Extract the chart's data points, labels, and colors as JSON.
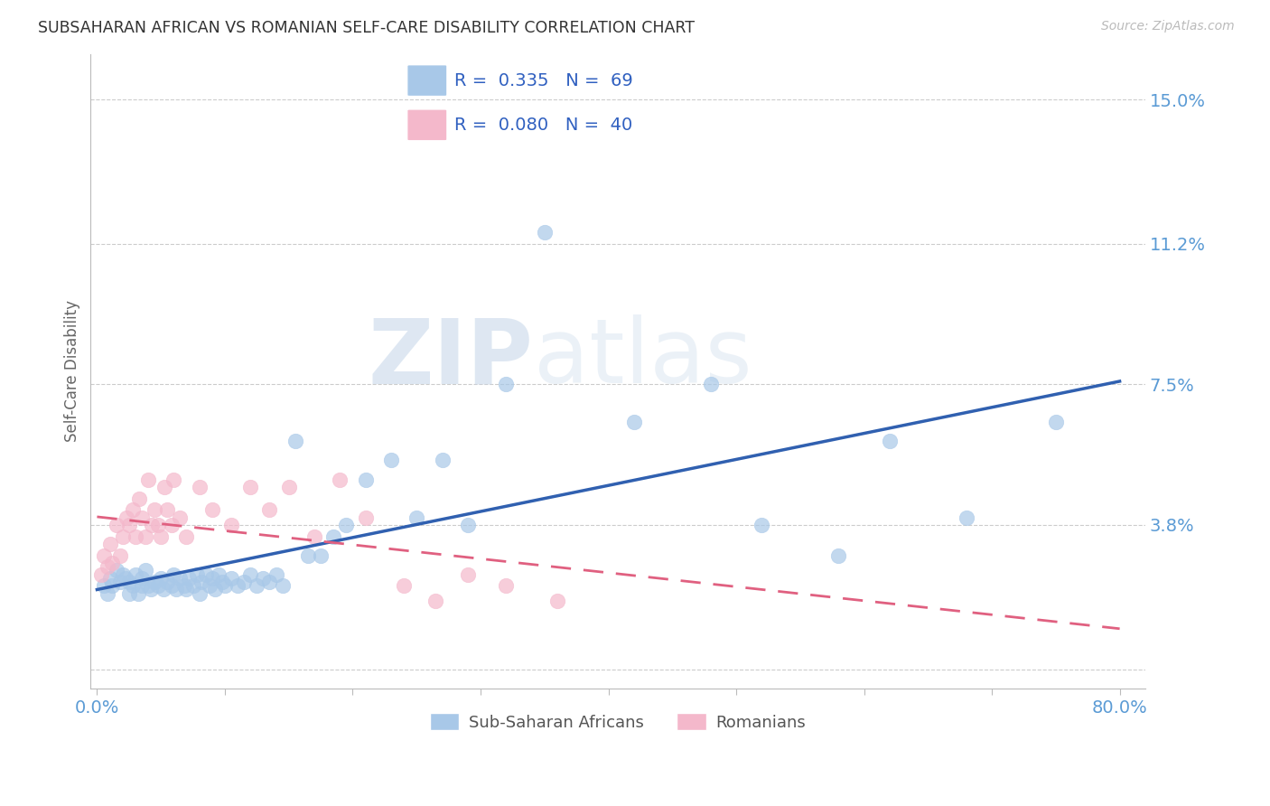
{
  "title": "SUBSAHARAN AFRICAN VS ROMANIAN SELF-CARE DISABILITY CORRELATION CHART",
  "source": "Source: ZipAtlas.com",
  "ylabel": "Self-Care Disability",
  "xlabel": "",
  "yticks": [
    0.0,
    0.038,
    0.075,
    0.112,
    0.15
  ],
  "ytick_labels": [
    "",
    "3.8%",
    "7.5%",
    "11.2%",
    "15.0%"
  ],
  "xticks": [
    0.0,
    0.1,
    0.2,
    0.3,
    0.4,
    0.5,
    0.6,
    0.7,
    0.8
  ],
  "xtick_labels": [
    "0.0%",
    "",
    "",
    "",
    "",
    "",
    "",
    "",
    "80.0%"
  ],
  "xlim": [
    -0.005,
    0.82
  ],
  "ylim": [
    -0.005,
    0.162
  ],
  "legend_blue_r": "0.335",
  "legend_blue_n": "69",
  "legend_pink_r": "0.080",
  "legend_pink_n": "40",
  "legend_blue_label": "Sub-Saharan Africans",
  "legend_pink_label": "Romanians",
  "blue_color": "#a8c8e8",
  "pink_color": "#f4b8cb",
  "blue_line_color": "#3060b0",
  "pink_line_color": "#e06080",
  "watermark_zip": "ZIP",
  "watermark_atlas": "atlas",
  "blue_scatter_x": [
    0.005,
    0.008,
    0.01,
    0.012,
    0.015,
    0.018,
    0.02,
    0.022,
    0.025,
    0.025,
    0.028,
    0.03,
    0.032,
    0.035,
    0.035,
    0.038,
    0.04,
    0.042,
    0.045,
    0.048,
    0.05,
    0.052,
    0.055,
    0.058,
    0.06,
    0.062,
    0.065,
    0.068,
    0.07,
    0.072,
    0.075,
    0.078,
    0.08,
    0.082,
    0.085,
    0.088,
    0.09,
    0.092,
    0.095,
    0.098,
    0.1,
    0.105,
    0.11,
    0.115,
    0.12,
    0.125,
    0.13,
    0.135,
    0.14,
    0.145,
    0.155,
    0.165,
    0.175,
    0.185,
    0.195,
    0.21,
    0.23,
    0.25,
    0.27,
    0.29,
    0.32,
    0.35,
    0.42,
    0.48,
    0.52,
    0.58,
    0.62,
    0.68,
    0.75
  ],
  "blue_scatter_y": [
    0.022,
    0.02,
    0.024,
    0.022,
    0.026,
    0.023,
    0.025,
    0.024,
    0.02,
    0.023,
    0.022,
    0.025,
    0.02,
    0.024,
    0.022,
    0.026,
    0.022,
    0.021,
    0.023,
    0.022,
    0.024,
    0.021,
    0.023,
    0.022,
    0.025,
    0.021,
    0.024,
    0.022,
    0.021,
    0.024,
    0.022,
    0.025,
    0.02,
    0.023,
    0.025,
    0.022,
    0.024,
    0.021,
    0.025,
    0.023,
    0.022,
    0.024,
    0.022,
    0.023,
    0.025,
    0.022,
    0.024,
    0.023,
    0.025,
    0.022,
    0.06,
    0.03,
    0.03,
    0.035,
    0.038,
    0.05,
    0.055,
    0.04,
    0.055,
    0.038,
    0.075,
    0.115,
    0.065,
    0.075,
    0.038,
    0.03,
    0.06,
    0.04,
    0.065
  ],
  "pink_scatter_x": [
    0.003,
    0.005,
    0.008,
    0.01,
    0.012,
    0.015,
    0.018,
    0.02,
    0.023,
    0.025,
    0.028,
    0.03,
    0.033,
    0.035,
    0.038,
    0.04,
    0.043,
    0.045,
    0.048,
    0.05,
    0.053,
    0.055,
    0.058,
    0.06,
    0.065,
    0.07,
    0.08,
    0.09,
    0.105,
    0.12,
    0.135,
    0.15,
    0.17,
    0.19,
    0.21,
    0.24,
    0.265,
    0.29,
    0.32,
    0.36
  ],
  "pink_scatter_y": [
    0.025,
    0.03,
    0.027,
    0.033,
    0.028,
    0.038,
    0.03,
    0.035,
    0.04,
    0.038,
    0.042,
    0.035,
    0.045,
    0.04,
    0.035,
    0.05,
    0.038,
    0.042,
    0.038,
    0.035,
    0.048,
    0.042,
    0.038,
    0.05,
    0.04,
    0.035,
    0.048,
    0.042,
    0.038,
    0.048,
    0.042,
    0.048,
    0.035,
    0.05,
    0.04,
    0.022,
    0.018,
    0.025,
    0.022,
    0.018
  ]
}
